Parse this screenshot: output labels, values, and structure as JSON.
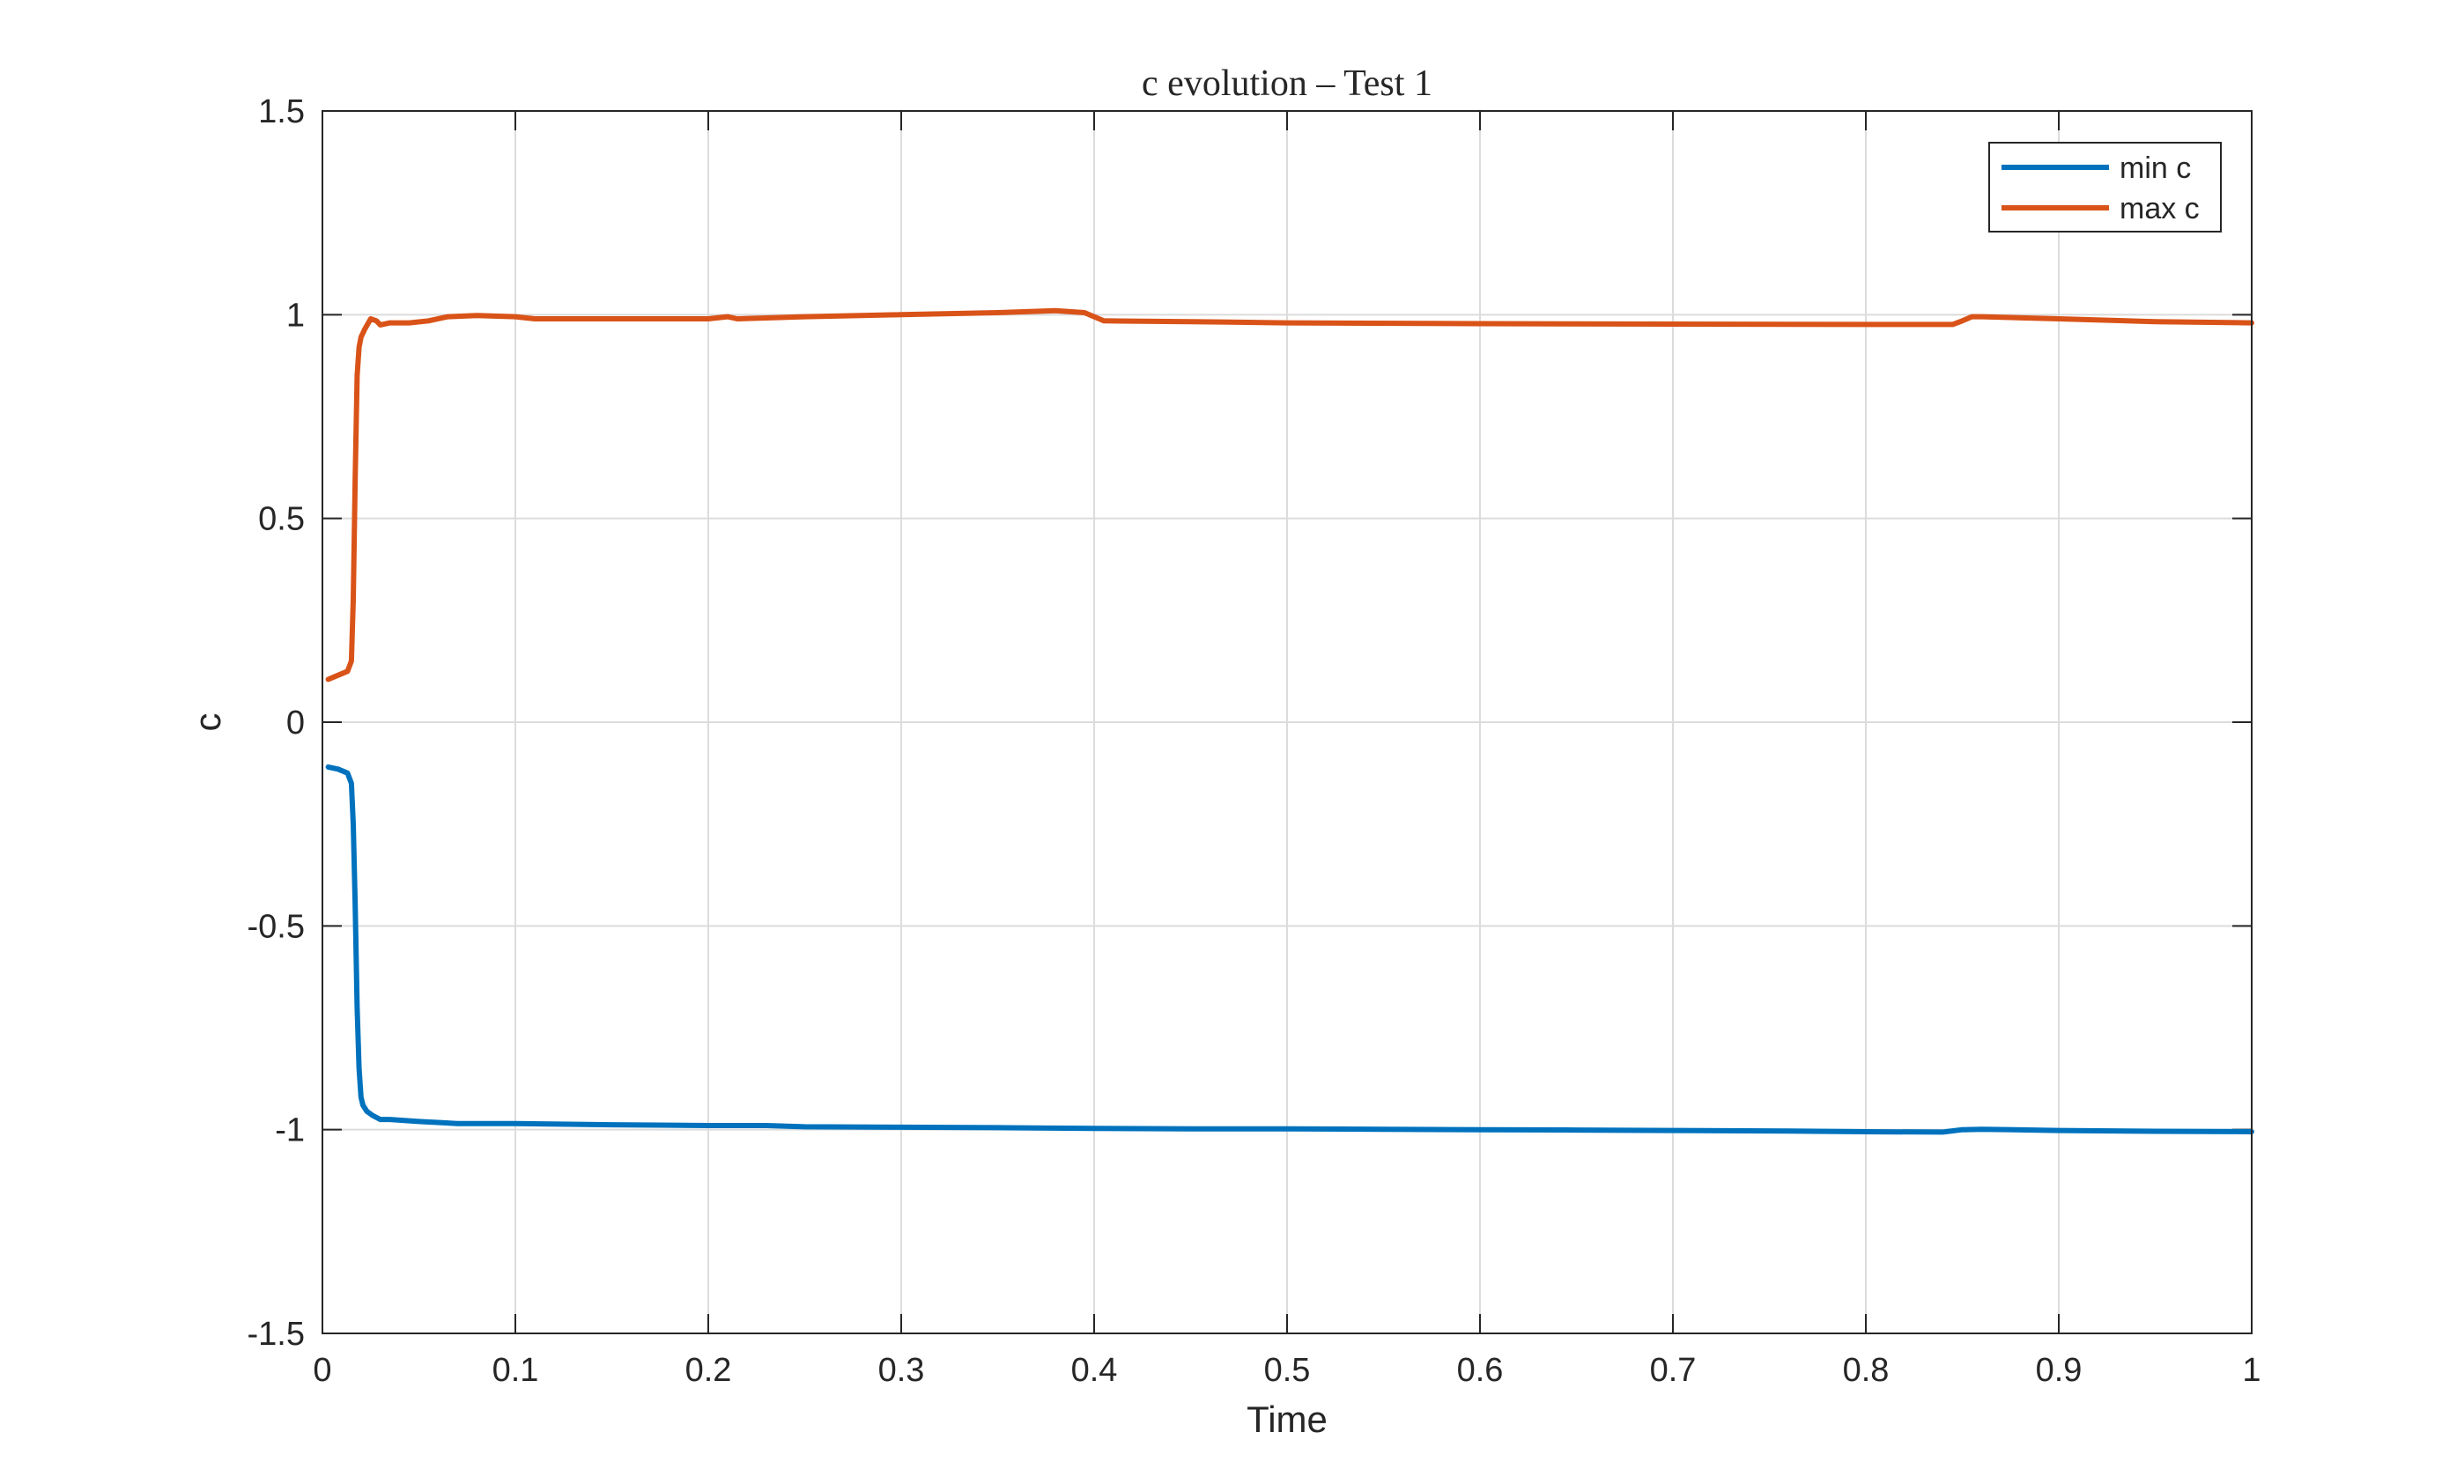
{
  "chart_data": {
    "type": "line",
    "title": "c evolution – Test 1",
    "xlabel": "Time",
    "ylabel": "c",
    "xlim": [
      0,
      1
    ],
    "ylim": [
      -1.5,
      1.5
    ],
    "xticks": [
      0,
      0.1,
      0.2,
      0.3,
      0.4,
      0.5,
      0.6,
      0.7,
      0.8,
      0.9,
      1
    ],
    "xtick_labels": [
      "0",
      "0.1",
      "0.2",
      "0.3",
      "0.4",
      "0.5",
      "0.6",
      "0.7",
      "0.8",
      "0.9",
      "1"
    ],
    "yticks": [
      -1.5,
      -1,
      -0.5,
      0,
      0.5,
      1,
      1.5
    ],
    "ytick_labels": [
      "-1.5",
      "-1",
      "-0.5",
      "0",
      "0.5",
      "1",
      "1.5"
    ],
    "grid": true,
    "legend_position": "top-right",
    "series": [
      {
        "name": "min c",
        "color": "#0072BD",
        "x": [
          0.003,
          0.008,
          0.013,
          0.015,
          0.016,
          0.017,
          0.018,
          0.019,
          0.02,
          0.021,
          0.023,
          0.026,
          0.03,
          0.035,
          0.05,
          0.07,
          0.1,
          0.15,
          0.2,
          0.23,
          0.25,
          0.3,
          0.35,
          0.4,
          0.45,
          0.5,
          0.55,
          0.6,
          0.65,
          0.7,
          0.75,
          0.8,
          0.84,
          0.85,
          0.86,
          0.9,
          0.95,
          1.0
        ],
        "y": [
          -0.11,
          -0.115,
          -0.125,
          -0.15,
          -0.25,
          -0.45,
          -0.7,
          -0.85,
          -0.92,
          -0.94,
          -0.955,
          -0.965,
          -0.975,
          -0.975,
          -0.98,
          -0.985,
          -0.985,
          -0.988,
          -0.99,
          -0.99,
          -0.993,
          -0.994,
          -0.995,
          -0.997,
          -0.998,
          -0.998,
          -0.999,
          -1.0,
          -1.001,
          -1.002,
          -1.003,
          -1.005,
          -1.006,
          -1.0,
          -0.999,
          -1.002,
          -1.004,
          -1.005
        ]
      },
      {
        "name": "max c",
        "color": "#D95319",
        "x": [
          0.003,
          0.008,
          0.013,
          0.015,
          0.016,
          0.017,
          0.018,
          0.019,
          0.02,
          0.022,
          0.025,
          0.028,
          0.03,
          0.035,
          0.045,
          0.055,
          0.065,
          0.08,
          0.1,
          0.11,
          0.15,
          0.2,
          0.21,
          0.215,
          0.25,
          0.3,
          0.35,
          0.38,
          0.395,
          0.4,
          0.405,
          0.45,
          0.5,
          0.6,
          0.7,
          0.8,
          0.845,
          0.85,
          0.855,
          0.86,
          0.9,
          0.95,
          1.0
        ],
        "y": [
          0.105,
          0.115,
          0.125,
          0.15,
          0.3,
          0.6,
          0.85,
          0.92,
          0.945,
          0.965,
          0.99,
          0.985,
          0.975,
          0.98,
          0.98,
          0.985,
          0.995,
          0.998,
          0.995,
          0.99,
          0.99,
          0.99,
          0.995,
          0.99,
          0.995,
          1.0,
          1.005,
          1.01,
          1.005,
          0.995,
          0.985,
          0.983,
          0.98,
          0.978,
          0.977,
          0.976,
          0.976,
          0.985,
          0.995,
          0.995,
          0.99,
          0.983,
          0.98
        ]
      }
    ]
  }
}
